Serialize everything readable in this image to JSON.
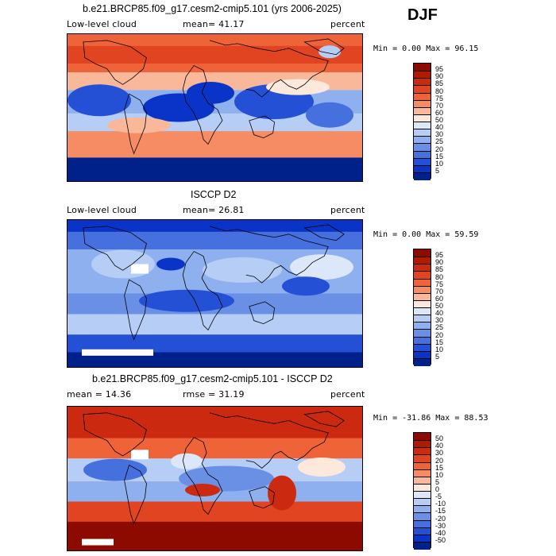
{
  "season": "DJF",
  "panels": [
    {
      "title": "b.e21.BRCP85.f09_g17.cesm2-cmip5.101 (yrs 2006-2025)",
      "left_label": "Low-level cloud",
      "mean_label": "mean=  41.17",
      "units": "percent",
      "minmax": "Min =   0.00 Max =  96.15",
      "levels": [
        "95",
        "90",
        "85",
        "80",
        "75",
        "70",
        "60",
        "50",
        "40",
        "30",
        "25",
        "20",
        "15",
        "10",
        "5"
      ],
      "colors": [
        "#8c0a00",
        "#b01a00",
        "#cc2a10",
        "#e04420",
        "#ee6438",
        "#f68c64",
        "#fab89a",
        "#fde8dc",
        "#dce8fa",
        "#b6cdf6",
        "#8eb0ef",
        "#6a90e6",
        "#4670de",
        "#2450d6",
        "#0a34c8",
        "#00208a"
      ],
      "style": "model"
    },
    {
      "title": "ISCCP D2",
      "left_label": "Low-level cloud",
      "mean_label": "mean=  26.81",
      "units": "percent",
      "minmax": "Min =   0.00 Max =  59.59",
      "levels": [
        "95",
        "90",
        "85",
        "80",
        "75",
        "70",
        "60",
        "50",
        "40",
        "30",
        "25",
        "20",
        "15",
        "10",
        "5"
      ],
      "colors": [
        "#8c0a00",
        "#b01a00",
        "#cc2a10",
        "#e04420",
        "#ee6438",
        "#f68c64",
        "#fab89a",
        "#fde8dc",
        "#dce8fa",
        "#b6cdf6",
        "#8eb0ef",
        "#6a90e6",
        "#4670de",
        "#2450d6",
        "#0a34c8",
        "#00208a"
      ],
      "style": "obs"
    },
    {
      "title": "b.e21.BRCP85.f09_g17.cesm2-cmip5.101 - ISCCP D2",
      "left_label": "mean =  14.36",
      "mean_label": "rmse =  31.19",
      "units": "percent",
      "minmax": "Min = -31.86 Max =  88.53",
      "levels": [
        "50",
        "40",
        "30",
        "20",
        "15",
        "10",
        "5",
        "0",
        "-5",
        "-10",
        "-15",
        "-20",
        "-30",
        "-40",
        "-50"
      ],
      "colors": [
        "#8c0a00",
        "#b01a00",
        "#cc2a10",
        "#e04420",
        "#ee6438",
        "#f68c64",
        "#fab89a",
        "#fde8dc",
        "#dce8fa",
        "#b6cdf6",
        "#8eb0ef",
        "#6a90e6",
        "#4670de",
        "#2450d6",
        "#0a34c8",
        "#00208a"
      ],
      "style": "diff"
    }
  ]
}
